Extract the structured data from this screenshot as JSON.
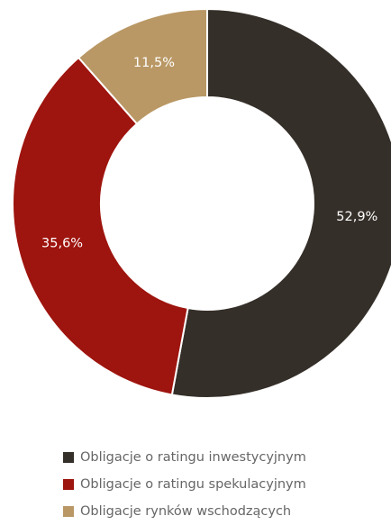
{
  "chart_data": {
    "type": "pie",
    "variant": "donut",
    "start_angle_deg": 0,
    "direction": "clockwise",
    "slices": [
      {
        "label": "Obligacje o ratingu inwestycyjnym",
        "value": 52.9,
        "display": "52,9%",
        "color": "#352f29"
      },
      {
        "label": "Obligacje o ratingu spekulacyjnym",
        "value": 35.6,
        "display": "35,6%",
        "color": "#9e140e"
      },
      {
        "label": "Obligacje rynków wschodzących",
        "value": 11.5,
        "display": "11,5%",
        "color": "#b99865"
      }
    ],
    "legend_position": "bottom"
  }
}
